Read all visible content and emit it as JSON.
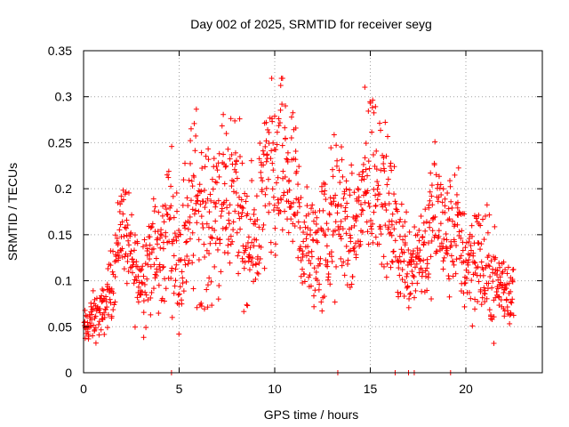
{
  "chart_data": {
    "type": "scatter",
    "title": "Day 002 of 2025, SRMTID for receiver seyg",
    "xlabel": "GPS time / hours",
    "ylabel": "SRMTID / TECUs",
    "xlim": [
      0,
      24
    ],
    "ylim": [
      0,
      0.35
    ],
    "xticks": [
      0,
      5,
      10,
      15,
      20
    ],
    "xtick_labels": [
      "0",
      "5",
      "10",
      "15",
      "20"
    ],
    "yticks": [
      0,
      0.05,
      0.1,
      0.15,
      0.2,
      0.25,
      0.3,
      0.35
    ],
    "ytick_labels": [
      "0",
      "0.05",
      "0.1",
      "0.15",
      "0.2",
      "0.25",
      "0.3",
      "0.35"
    ],
    "grid": true,
    "marker": "+",
    "color": "#ff0000",
    "series": [
      {
        "name": "SRMTID",
        "envelope_x": [
          0,
          0.5,
          1,
          1.5,
          2,
          2.5,
          3,
          3.5,
          4,
          4.5,
          5,
          5.5,
          6,
          6.5,
          7,
          7.5,
          8,
          8.5,
          9,
          9.5,
          10,
          10.5,
          11,
          11.5,
          12,
          12.5,
          13,
          13.5,
          14,
          14.5,
          15,
          15.5,
          16,
          16.5,
          17,
          17.5,
          18,
          18.5,
          19,
          19.5,
          20,
          20.5,
          21,
          21.5,
          22,
          22.5
        ],
        "envelope_center": [
          0.045,
          0.06,
          0.065,
          0.1,
          0.17,
          0.12,
          0.1,
          0.13,
          0.12,
          0.17,
          0.12,
          0.17,
          0.19,
          0.15,
          0.19,
          0.17,
          0.22,
          0.12,
          0.15,
          0.2,
          0.21,
          0.22,
          0.19,
          0.14,
          0.13,
          0.14,
          0.16,
          0.18,
          0.14,
          0.18,
          0.22,
          0.21,
          0.17,
          0.14,
          0.12,
          0.13,
          0.14,
          0.18,
          0.14,
          0.16,
          0.12,
          0.13,
          0.11,
          0.1,
          0.09,
          0.09
        ],
        "envelope_spread": [
          0.015,
          0.02,
          0.02,
          0.03,
          0.04,
          0.04,
          0.04,
          0.05,
          0.05,
          0.06,
          0.05,
          0.07,
          0.08,
          0.06,
          0.08,
          0.06,
          0.07,
          0.05,
          0.06,
          0.07,
          0.08,
          0.07,
          0.07,
          0.05,
          0.05,
          0.06,
          0.07,
          0.06,
          0.05,
          0.06,
          0.08,
          0.07,
          0.05,
          0.05,
          0.04,
          0.04,
          0.05,
          0.06,
          0.05,
          0.05,
          0.05,
          0.05,
          0.05,
          0.04,
          0.03,
          0.03
        ],
        "zero_points_x": [
          4.6,
          13.3,
          16.3,
          17.0,
          17.3,
          19.2
        ]
      }
    ]
  }
}
